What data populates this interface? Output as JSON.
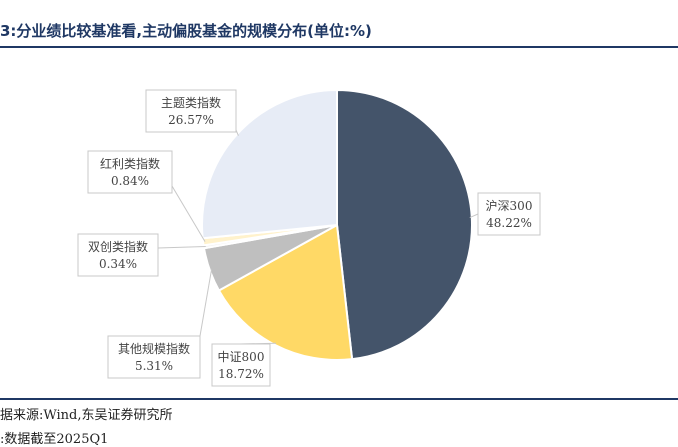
{
  "title": "3:分业绩比较基准看,主动偏股基金的规模分布(单位:%)",
  "source": "据来源:Wind,东吴证券研究所",
  "note": ":数据截至2025Q1",
  "chart_data": {
    "type": "pie",
    "categories": [
      "沪深300",
      "中证800",
      "其他规模指数",
      "双创类指数",
      "红利类指数",
      "主题类指数"
    ],
    "values": [
      48.22,
      18.72,
      5.31,
      0.34,
      0.84,
      26.57
    ],
    "value_labels": [
      "48.22%",
      "18.72%",
      "5.31%",
      "0.34%",
      "0.84%",
      "26.57%"
    ],
    "colors": [
      "#44546a",
      "#ffd966",
      "#bfbfbf",
      "#f2f2f2",
      "#fff2cc",
      "#e7ecf6"
    ],
    "start": "12 o'clock",
    "direction": "clockwise",
    "legend": "none"
  }
}
